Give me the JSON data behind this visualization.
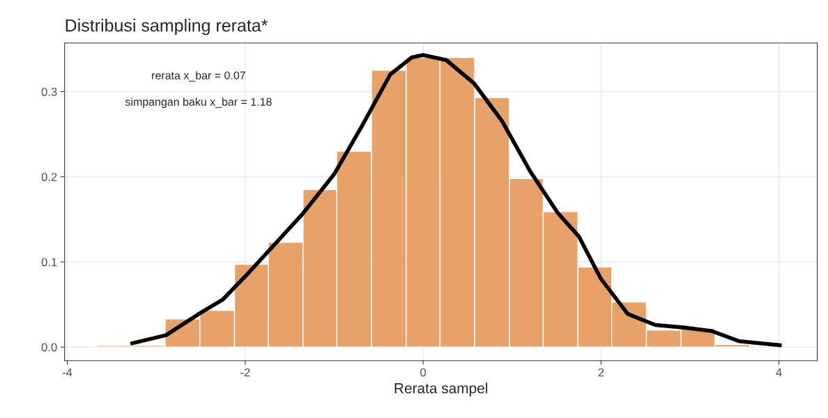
{
  "chart_data": {
    "type": "histogram",
    "title": "Distribusi sampling rerata*",
    "xlabel": "Rerata sampel",
    "bins": [
      -3.67,
      -3.28,
      -2.9,
      -2.51,
      -2.12,
      -1.74,
      -1.35,
      -0.97,
      -0.58,
      -0.19,
      0.19,
      0.58,
      0.97,
      1.35,
      1.74,
      2.12,
      2.51,
      2.9,
      3.28,
      3.67
    ],
    "values": [
      0.002,
      0.002,
      0.033,
      0.043,
      0.097,
      0.123,
      0.185,
      0.23,
      0.325,
      0.34,
      0.34,
      0.293,
      0.198,
      0.159,
      0.094,
      0.053,
      0.02,
      0.022,
      0.003
    ],
    "color": "#e69d62",
    "series": [
      {
        "type": "line",
        "color": "#000000",
        "x": [
          -3.29,
          -2.89,
          -2.49,
          -2.25,
          -2.0,
          -1.7,
          -1.35,
          -1.0,
          -0.68,
          -0.37,
          -0.13,
          0.0,
          0.26,
          0.57,
          0.89,
          1.2,
          1.51,
          1.75,
          2.0,
          2.3,
          2.61,
          2.93,
          3.24,
          3.55,
          4.03
        ],
        "values": [
          0.004,
          0.014,
          0.041,
          0.056,
          0.083,
          0.117,
          0.157,
          0.203,
          0.261,
          0.32,
          0.34,
          0.343,
          0.337,
          0.31,
          0.265,
          0.207,
          0.158,
          0.13,
          0.08,
          0.039,
          0.026,
          0.023,
          0.019,
          0.007,
          0.002
        ]
      }
    ],
    "annotations": [
      "rerata x_bar = 0.07",
      "simpangan baku x_bar = 1.18"
    ],
    "xlim": [
      -4.03,
      4.43
    ],
    "ylim": [
      -0.016,
      0.357
    ],
    "xticks": [
      {
        "value": -4,
        "label": "-4"
      },
      {
        "value": -2,
        "label": "-2"
      },
      0,
      2,
      4
    ],
    "yticks": [
      {
        "value": 0,
        "label": "0.0"
      },
      0.1,
      0.2,
      0.3
    ],
    "grid": true
  }
}
